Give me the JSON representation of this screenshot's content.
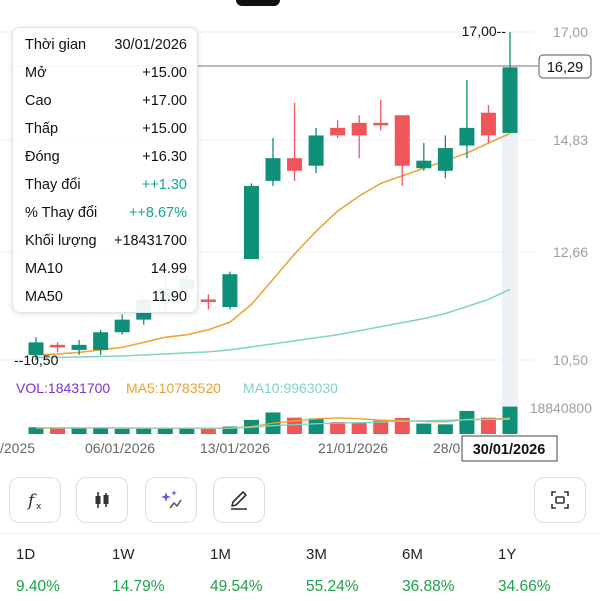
{
  "tooltip": {
    "rows": [
      {
        "label": "Thời gian",
        "value": "30/01/2026"
      },
      {
        "label": "Mở",
        "value": "+15.00"
      },
      {
        "label": "Cao",
        "value": "+17.00"
      },
      {
        "label": "Thấp",
        "value": "+15.00"
      },
      {
        "label": "Đóng",
        "value": "+16.30"
      },
      {
        "label": "Thay đổi",
        "value": "++1.30",
        "positive": true
      },
      {
        "label": "% Thay đổi",
        "value": "++8.67%",
        "positive": true
      },
      {
        "label": "Khối lượng",
        "value": "+18431700"
      },
      {
        "label": "MA10",
        "value": "14.99"
      },
      {
        "label": "MA50",
        "value": "11.90"
      }
    ]
  },
  "chart_data": {
    "type": "candlestick",
    "y_ticks": [
      "17,00",
      "14,83",
      "12,66",
      "10,50"
    ],
    "y_range": [
      10.5,
      17.0
    ],
    "current_price_label": "16,29",
    "current_price": 16.29,
    "high_label": "17,00--",
    "low_label": "--10,50",
    "x_labels": [
      "/2025",
      "06/01/2026",
      "13/01/2026",
      "21/01/2026",
      "28/0"
    ],
    "selected_date": "30/01/2026",
    "candles": [
      {
        "o": 10.6,
        "h": 10.95,
        "l": 10.5,
        "c": 10.85
      },
      {
        "o": 10.8,
        "h": 10.85,
        "l": 10.65,
        "c": 10.75
      },
      {
        "o": 10.7,
        "h": 10.9,
        "l": 10.6,
        "c": 10.8
      },
      {
        "o": 10.7,
        "h": 11.1,
        "l": 10.6,
        "c": 11.05
      },
      {
        "o": 11.05,
        "h": 11.4,
        "l": 11.0,
        "c": 11.3
      },
      {
        "o": 11.3,
        "h": 11.8,
        "l": 11.2,
        "c": 11.7
      },
      {
        "o": 11.7,
        "h": 12.2,
        "l": 11.5,
        "c": 11.9
      },
      {
        "o": 11.9,
        "h": 12.3,
        "l": 11.7,
        "c": 12.1
      },
      {
        "o": 11.7,
        "h": 11.8,
        "l": 11.5,
        "c": 11.65
      },
      {
        "o": 11.55,
        "h": 12.25,
        "l": 11.5,
        "c": 12.2
      },
      {
        "o": 12.5,
        "h": 14.0,
        "l": 12.5,
        "c": 13.95
      },
      {
        "o": 14.05,
        "h": 14.9,
        "l": 13.95,
        "c": 14.5
      },
      {
        "o": 14.5,
        "h": 15.6,
        "l": 14.05,
        "c": 14.25
      },
      {
        "o": 14.35,
        "h": 15.1,
        "l": 14.2,
        "c": 14.95
      },
      {
        "o": 15.1,
        "h": 15.25,
        "l": 14.9,
        "c": 14.95
      },
      {
        "o": 15.2,
        "h": 15.35,
        "l": 14.5,
        "c": 14.95
      },
      {
        "o": 15.2,
        "h": 15.65,
        "l": 15.05,
        "c": 15.15
      },
      {
        "o": 15.35,
        "h": 15.35,
        "l": 13.95,
        "c": 14.35
      },
      {
        "o": 14.3,
        "h": 14.8,
        "l": 14.25,
        "c": 14.45
      },
      {
        "o": 14.25,
        "h": 14.95,
        "l": 14.1,
        "c": 14.7
      },
      {
        "o": 14.75,
        "h": 16.05,
        "l": 14.5,
        "c": 15.1
      },
      {
        "o": 15.4,
        "h": 15.55,
        "l": 14.8,
        "c": 14.95
      },
      {
        "o": 15.0,
        "h": 17.0,
        "l": 15.0,
        "c": 16.3
      }
    ],
    "ma10": [
      10.6,
      10.62,
      10.65,
      10.7,
      10.75,
      10.85,
      10.95,
      11.0,
      11.1,
      11.25,
      11.6,
      12.1,
      12.6,
      13.05,
      13.45,
      13.75,
      14.0,
      14.15,
      14.3,
      14.45,
      14.6,
      14.8,
      14.99
    ],
    "ma50": [
      10.55,
      10.55,
      10.56,
      10.57,
      10.58,
      10.6,
      10.62,
      10.64,
      10.66,
      10.7,
      10.76,
      10.82,
      10.88,
      10.94,
      11.0,
      11.08,
      11.16,
      11.24,
      11.32,
      11.42,
      11.56,
      11.7,
      11.9
    ],
    "volume": {
      "legend": [
        "VOL:18431700",
        "MA5:10783520",
        "MA10:9963030"
      ],
      "max_label": "18840800",
      "values": [
        4500000,
        3800000,
        4200000,
        4000000,
        3500000,
        4300000,
        3600000,
        3900000,
        3400000,
        5000000,
        9500000,
        14500000,
        11000000,
        10500000,
        8000000,
        7500000,
        9000000,
        10800000,
        7000000,
        6500000,
        15500000,
        11000000,
        18431700
      ],
      "ma5": [
        4000000,
        4000000,
        4050000,
        4100000,
        4000000,
        3950000,
        3900000,
        3850000,
        3750000,
        3800000,
        5000000,
        7300000,
        8800000,
        10200000,
        10800000,
        10300000,
        9300000,
        9100000,
        8400000,
        8200000,
        9800000,
        10000000,
        10783520
      ],
      "ma10": [
        4200000,
        4150000,
        4100000,
        4100000,
        4050000,
        4000000,
        3950000,
        3950000,
        3950000,
        4000000,
        4500000,
        5600000,
        6300000,
        6900000,
        7300000,
        7600000,
        8000000,
        8600000,
        8900000,
        9200000,
        9600000,
        9800000,
        9963030
      ]
    }
  },
  "toolbar": [
    "formula-icon",
    "candlestick-icon",
    "sparkle-icon",
    "pen-icon",
    "fullscreen-icon"
  ],
  "performance": [
    {
      "label": "1D",
      "value": "9.40%"
    },
    {
      "label": "1W",
      "value": "14.79%"
    },
    {
      "label": "1M",
      "value": "49.54%"
    },
    {
      "label": "3M",
      "value": "55.24%"
    },
    {
      "label": "6M",
      "value": "36.88%"
    },
    {
      "label": "1Y",
      "value": "34.66%"
    }
  ],
  "colors": {
    "up": "#0f8f78",
    "down": "#f0555a",
    "ma10": "#f0a030",
    "ma50": "#7dd4c4",
    "vol_label": "#7a33d6"
  }
}
